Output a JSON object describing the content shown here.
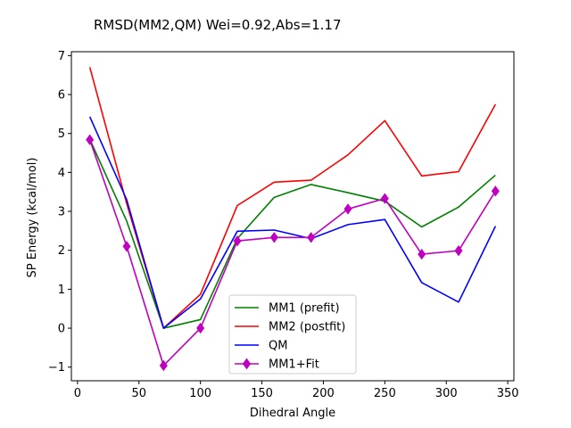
{
  "chart_data": {
    "type": "line",
    "title": "RMSD(MM2,QM) Wei=0.92,Abs=1.17",
    "xlabel": "Dihedral Angle",
    "ylabel": "SP Energy (kcal/mol)",
    "xlim": [
      -5,
      355
    ],
    "ylim": [
      -1.35,
      7.1
    ],
    "xticks": [
      0,
      50,
      100,
      150,
      200,
      250,
      300,
      350
    ],
    "yticks": [
      -1,
      0,
      1,
      2,
      3,
      4,
      5,
      6,
      7
    ],
    "grid": false,
    "legend_position": "lower-center",
    "x": [
      10,
      40,
      70,
      100,
      130,
      160,
      190,
      220,
      250,
      280,
      310,
      340
    ],
    "series": [
      {
        "name": "MM1 (prefit)",
        "color": "#008000",
        "marker": "none",
        "values": [
          4.85,
          2.75,
          0.0,
          0.22,
          2.3,
          3.36,
          3.69,
          3.48,
          3.26,
          2.6,
          3.11,
          3.93
        ]
      },
      {
        "name": "MM2 (postfit)",
        "color": "#ff0000",
        "marker": "none",
        "values": [
          6.7,
          3.2,
          0.0,
          0.87,
          3.15,
          3.75,
          3.8,
          4.45,
          5.33,
          3.91,
          4.02,
          5.75
        ]
      },
      {
        "name": "QM",
        "color": "#0000ff",
        "marker": "none",
        "values": [
          5.43,
          3.3,
          0.0,
          0.75,
          2.49,
          2.52,
          2.3,
          2.66,
          2.79,
          1.17,
          0.67,
          2.62
        ]
      },
      {
        "name": "MM1+Fit",
        "color": "#bf00bf",
        "marker": "diamond",
        "values": [
          4.84,
          2.1,
          -0.96,
          0.0,
          2.24,
          2.33,
          2.33,
          3.06,
          3.33,
          1.9,
          1.99,
          3.52
        ]
      }
    ]
  }
}
